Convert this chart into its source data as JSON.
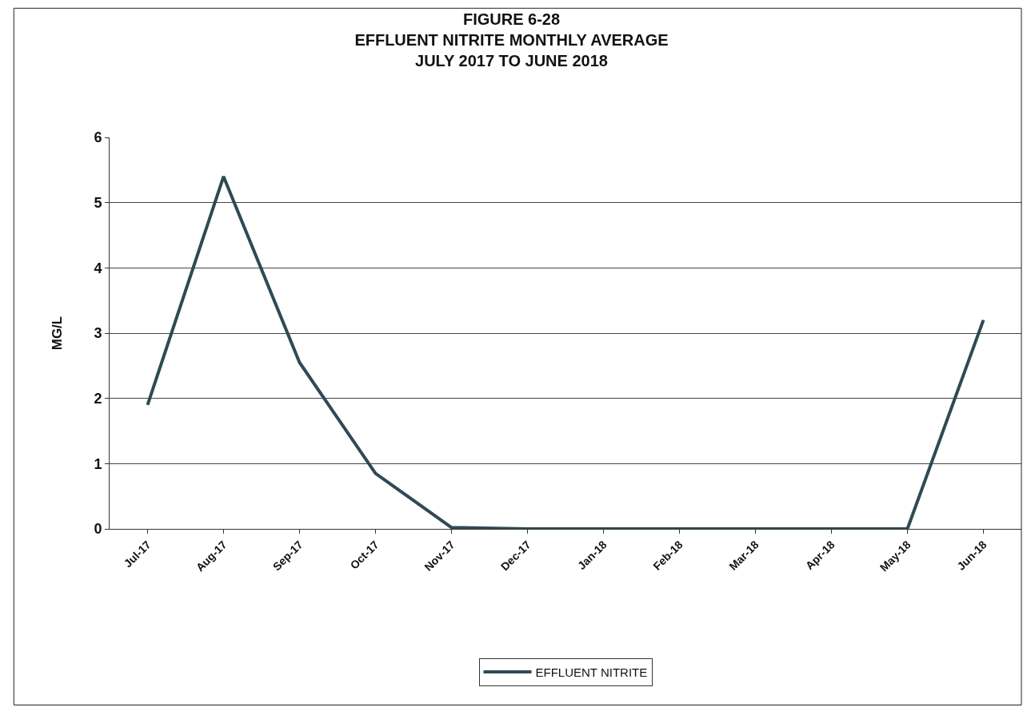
{
  "chart_data": {
    "type": "line",
    "title": "FIGURE 6-28\nEFFLUENT NITRITE MONTHLY AVERAGE\nJULY 2017 TO JUNE 2018",
    "ylabel": "MG/L",
    "categories": [
      "Jul-17",
      "Aug-17",
      "Sep-17",
      "Oct-17",
      "Nov-17",
      "Dec-17",
      "Jan-18",
      "Feb-18",
      "Mar-18",
      "Apr-18",
      "May-18",
      "Jun-18"
    ],
    "series": [
      {
        "name": "EFFLUENT NITRITE",
        "color": "#2f4a55",
        "values": [
          1.9,
          5.4,
          2.55,
          0.85,
          0.02,
          0,
          0,
          0,
          0,
          0,
          0,
          3.2
        ]
      }
    ],
    "ylim": [
      0,
      6
    ],
    "yticks": [
      0,
      1,
      2,
      3,
      4,
      5,
      6
    ],
    "grid": "y",
    "legend": "bottom",
    "marker": "none",
    "line_style": "solid"
  }
}
